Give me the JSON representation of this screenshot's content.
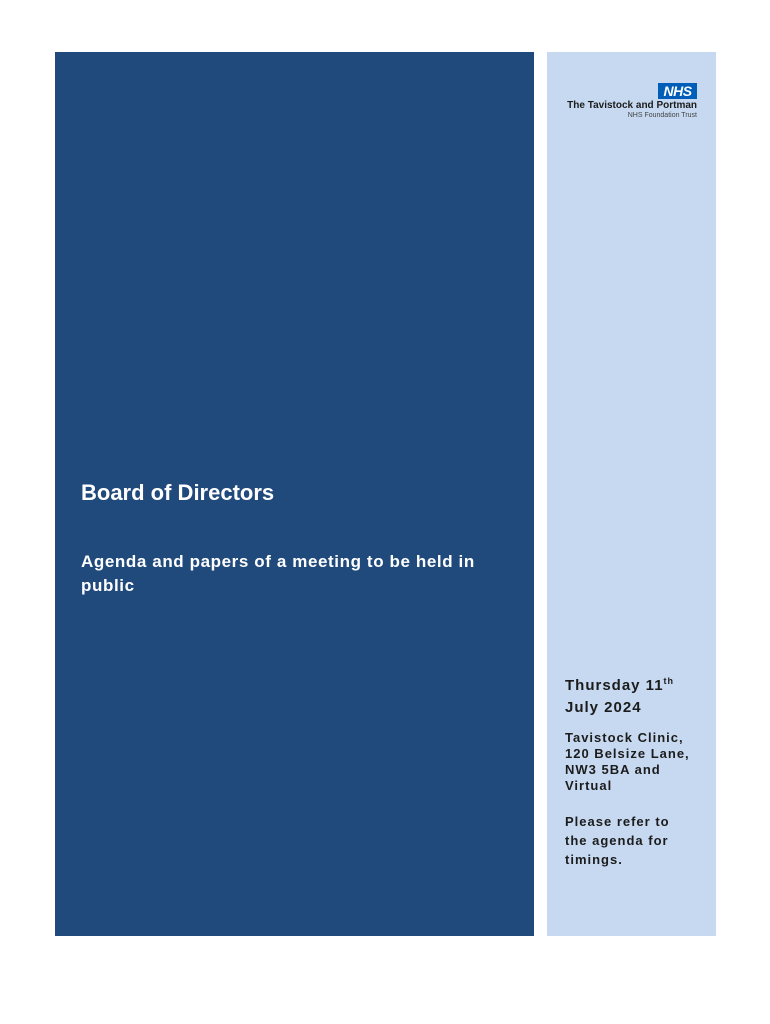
{
  "logo": {
    "badge": "NHS",
    "org_name": "The Tavistock and Portman",
    "org_sub": "NHS Foundation Trust"
  },
  "cover": {
    "title": "Board of Directors",
    "subtitle": "Agenda and papers of a meeting to be held in public"
  },
  "meeting": {
    "date_line1_text": "Thursday 11",
    "date_line1_sup": "th",
    "date_line2": "July 2024",
    "location_lines": [
      "Tavistock Clinic,",
      "120 Belsize Lane,",
      "NW3 5BA and",
      "Virtual"
    ],
    "note_lines": [
      "Please refer to",
      "the agenda for",
      "timings."
    ]
  },
  "colors": {
    "left_panel": "#214a7c",
    "right_panel": "#c6d9f1",
    "nhs_blue": "#005eb8"
  }
}
